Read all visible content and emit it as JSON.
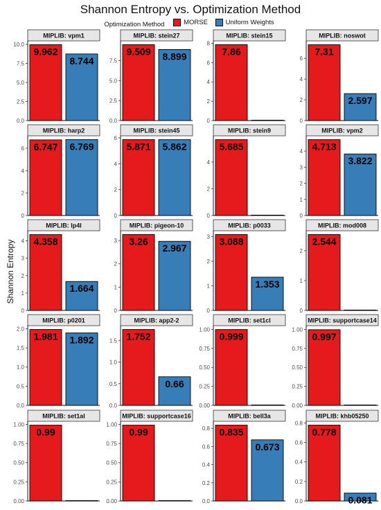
{
  "colors": {
    "morse": "#E41A1C",
    "uniform": "#377EB8",
    "strip": "#E6E6E6"
  },
  "chart_data": {
    "type": "bar",
    "title": "Shannon Entropy vs. Optimization Method",
    "ylabel": "Shannon Entropy",
    "legend": {
      "title": "Optimization Method",
      "position": "top",
      "entries": [
        "MORSE",
        "Uniform Weights"
      ]
    },
    "panels": [
      {
        "label": "MIPLIB: vpm1",
        "values": [
          9.962,
          8.744
        ],
        "data_labels": [
          "9.962",
          "8.744"
        ],
        "ticks": [
          "0.0",
          "2.5",
          "5.0",
          "7.5",
          "10.0"
        ],
        "tickvals": [
          0,
          2.5,
          5,
          7.5,
          10
        ],
        "ylim": [
          0,
          10.46
        ]
      },
      {
        "label": "MIPLIB: stein27",
        "values": [
          9.509,
          8.899
        ],
        "data_labels": [
          "9.509",
          "8.899"
        ],
        "ticks": [
          "0.0",
          "2.5",
          "5.0",
          "7.5"
        ],
        "tickvals": [
          0,
          2.5,
          5,
          7.5
        ],
        "ylim": [
          0,
          9.98
        ]
      },
      {
        "label": "MIPLIB: stein15",
        "values": [
          7.86,
          0
        ],
        "data_labels": [
          "7.86",
          ""
        ],
        "ticks": [
          "0",
          "2",
          "4",
          "6",
          "8"
        ],
        "tickvals": [
          0,
          2,
          4,
          6,
          8
        ],
        "ylim": [
          0,
          8.25
        ]
      },
      {
        "label": "MIPLIB: noswot",
        "values": [
          7.31,
          2.597
        ],
        "data_labels": [
          "7.31",
          "2.597"
        ],
        "ticks": [
          "0",
          "2",
          "4",
          "6"
        ],
        "tickvals": [
          0,
          2,
          4,
          6
        ],
        "ylim": [
          0,
          7.68
        ]
      },
      {
        "label": "MIPLIB: harp2",
        "values": [
          6.747,
          6.769
        ],
        "data_labels": [
          "6.747",
          "6.769"
        ],
        "ticks": [
          "0",
          "2",
          "4",
          "6"
        ],
        "tickvals": [
          0,
          2,
          4,
          6
        ],
        "ylim": [
          0,
          7.11
        ]
      },
      {
        "label": "MIPLIB: stein45",
        "values": [
          5.871,
          5.862
        ],
        "data_labels": [
          "5.871",
          "5.862"
        ],
        "ticks": [
          "0",
          "2",
          "4",
          "6"
        ],
        "tickvals": [
          0,
          2,
          4,
          6
        ],
        "ylim": [
          0,
          6.16
        ]
      },
      {
        "label": "MIPLIB: stein9",
        "values": [
          5.685,
          0
        ],
        "data_labels": [
          "5.685",
          ""
        ],
        "ticks": [
          "0",
          "2",
          "4"
        ],
        "tickvals": [
          0,
          2,
          4
        ],
        "ylim": [
          0,
          5.97
        ]
      },
      {
        "label": "MIPLIB: vpm2",
        "values": [
          4.713,
          3.822
        ],
        "data_labels": [
          "4.713",
          "3.822"
        ],
        "ticks": [
          "0",
          "1",
          "2",
          "3",
          "4"
        ],
        "tickvals": [
          0,
          1,
          2,
          3,
          4
        ],
        "ylim": [
          0,
          4.95
        ]
      },
      {
        "label": "MIPLIB: lp4l",
        "values": [
          4.358,
          1.664
        ],
        "data_labels": [
          "4.358",
          "1.664"
        ],
        "ticks": [
          "0",
          "1",
          "2",
          "3",
          "4"
        ],
        "tickvals": [
          0,
          1,
          2,
          3,
          4
        ],
        "ylim": [
          0,
          4.58
        ]
      },
      {
        "label": "MIPLIB: pigeon-10",
        "values": [
          3.26,
          2.967
        ],
        "data_labels": [
          "3.26",
          "2.967"
        ],
        "ticks": [
          "0",
          "1",
          "2",
          "3"
        ],
        "tickvals": [
          0,
          1,
          2,
          3
        ],
        "ylim": [
          0,
          3.42
        ]
      },
      {
        "label": "MIPLIB: p0033",
        "values": [
          3.088,
          1.353
        ],
        "data_labels": [
          "3.088",
          "1.353"
        ],
        "ticks": [
          "0",
          "1",
          "2",
          "3"
        ],
        "tickvals": [
          0,
          1,
          2,
          3
        ],
        "ylim": [
          0,
          3.24
        ]
      },
      {
        "label": "MIPLIB: mod008",
        "values": [
          2.544,
          0
        ],
        "data_labels": [
          "2.544",
          ""
        ],
        "ticks": [
          "0",
          "1",
          "2"
        ],
        "tickvals": [
          0,
          1,
          2
        ],
        "ylim": [
          0,
          2.67
        ]
      },
      {
        "label": "MIPLIB: p0201",
        "values": [
          1.981,
          1.892
        ],
        "data_labels": [
          "1.981",
          "1.892"
        ],
        "ticks": [
          "0.0",
          "0.5",
          "1.0",
          "1.5",
          "2.0"
        ],
        "tickvals": [
          0,
          0.5,
          1,
          1.5,
          2
        ],
        "ylim": [
          0,
          2.08
        ]
      },
      {
        "label": "MIPLIB: app2-2",
        "values": [
          1.752,
          0.66
        ],
        "data_labels": [
          "1.752",
          "0.66"
        ],
        "ticks": [
          "0.0",
          "0.5",
          "1.0",
          "1.5"
        ],
        "tickvals": [
          0,
          0.5,
          1,
          1.5
        ],
        "ylim": [
          0,
          1.84
        ]
      },
      {
        "label": "MIPLIB: set1cl",
        "values": [
          0.999,
          0
        ],
        "data_labels": [
          "0.999",
          ""
        ],
        "ticks": [
          "0.00",
          "0.25",
          "0.50",
          "0.75",
          "1.00"
        ],
        "tickvals": [
          0,
          0.25,
          0.5,
          0.75,
          1
        ],
        "ylim": [
          0,
          1.05
        ]
      },
      {
        "label": "MIPLIB: supportcase14",
        "values": [
          0.997,
          0
        ],
        "data_labels": [
          "0.997",
          ""
        ],
        "ticks": [
          "0.00",
          "0.25",
          "0.50",
          "0.75",
          "1.00"
        ],
        "tickvals": [
          0,
          0.25,
          0.5,
          0.75,
          1
        ],
        "ylim": [
          0,
          1.05
        ]
      },
      {
        "label": "MIPLIB: set1al",
        "values": [
          0.99,
          0
        ],
        "data_labels": [
          "0.99",
          ""
        ],
        "ticks": [
          "0.00",
          "0.25",
          "0.50",
          "0.75",
          "1.00"
        ],
        "tickvals": [
          0,
          0.25,
          0.5,
          0.75,
          1
        ],
        "ylim": [
          0,
          1.04
        ]
      },
      {
        "label": "MIPLIB: supportcase16",
        "values": [
          0.99,
          0
        ],
        "data_labels": [
          "0.99",
          ""
        ],
        "ticks": [
          "0.00",
          "0.25",
          "0.50",
          "0.75",
          "1.00"
        ],
        "tickvals": [
          0,
          0.25,
          0.5,
          0.75,
          1
        ],
        "ylim": [
          0,
          1.04
        ]
      },
      {
        "label": "MIPLIB: bell3a",
        "values": [
          0.835,
          0.673
        ],
        "data_labels": [
          "0.835",
          "0.673"
        ],
        "ticks": [
          "0.0",
          "0.2",
          "0.4",
          "0.6",
          "0.8"
        ],
        "tickvals": [
          0,
          0.2,
          0.4,
          0.6,
          0.8
        ],
        "ylim": [
          0,
          0.877
        ]
      },
      {
        "label": "MIPLIB: khb05250",
        "values": [
          0.778,
          0.081
        ],
        "data_labels": [
          "0.778",
          "0.081"
        ],
        "ticks": [
          "0.0",
          "0.2",
          "0.4",
          "0.6",
          "0.8"
        ],
        "tickvals": [
          0,
          0.2,
          0.4,
          0.6,
          0.8
        ],
        "ylim": [
          0,
          0.817
        ]
      }
    ]
  }
}
